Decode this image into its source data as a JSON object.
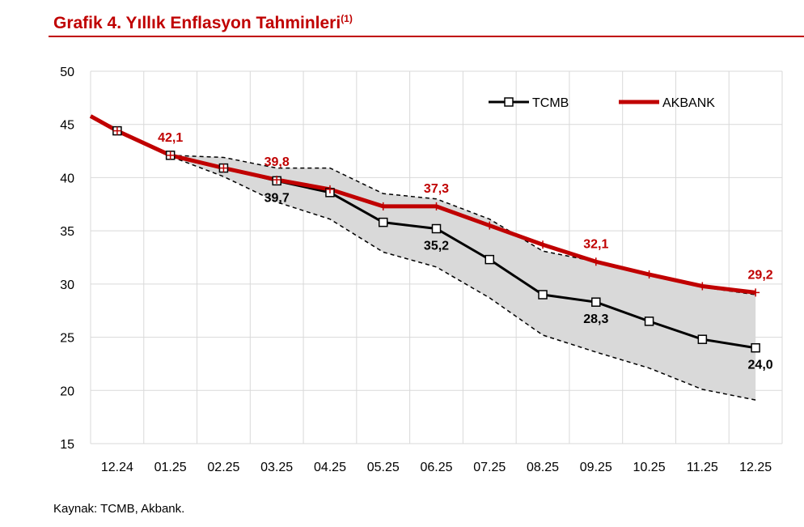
{
  "title": "Grafik 4. Yıllık Enflasyon Tahminleri",
  "title_note": "(1)",
  "source": "Kaynak: TCMB, Akbank.",
  "chart_data": {
    "type": "line",
    "categories": [
      "12.24",
      "01.25",
      "02.25",
      "03.25",
      "04.25",
      "05.25",
      "06.25",
      "07.25",
      "08.25",
      "09.25",
      "10.25",
      "11.25",
      "12.25"
    ],
    "ylim": [
      15,
      50
    ],
    "yticks": [
      15,
      20,
      25,
      30,
      35,
      40,
      45,
      50
    ],
    "grid": true,
    "legend_position": "top-right",
    "series": [
      {
        "name": "TCMB",
        "color": "#000000",
        "marker": "square",
        "values": [
          44.4,
          42.1,
          40.9,
          39.7,
          38.6,
          35.8,
          35.2,
          32.3,
          29.0,
          28.3,
          26.5,
          24.8,
          24.0
        ]
      },
      {
        "name": "AKBANK",
        "color": "#c00000",
        "marker": "plus",
        "values": [
          44.4,
          42.1,
          40.9,
          39.8,
          38.9,
          37.3,
          37.3,
          35.5,
          33.7,
          32.1,
          30.9,
          29.8,
          29.2
        ]
      }
    ],
    "band": {
      "color": "#d9d9d9",
      "upper": [
        44.4,
        42.1,
        41.9,
        40.9,
        40.9,
        38.5,
        38.0,
        36.1,
        33.1,
        32.1,
        30.9,
        29.7,
        29.0
      ],
      "lower": [
        44.4,
        42.0,
        40.1,
        37.7,
        36.1,
        33.0,
        31.6,
        28.7,
        25.2,
        23.6,
        22.1,
        20.1,
        19.1
      ]
    },
    "data_labels": [
      {
        "series": "AKBANK",
        "category": "01.25",
        "text": "42,1"
      },
      {
        "series": "AKBANK",
        "category": "03.25",
        "text": "39,8"
      },
      {
        "series": "TCMB",
        "category": "03.25",
        "text": "39,7"
      },
      {
        "series": "AKBANK",
        "category": "06.25",
        "text": "37,3"
      },
      {
        "series": "TCMB",
        "category": "06.25",
        "text": "35,2"
      },
      {
        "series": "AKBANK",
        "category": "09.25",
        "text": "32,1"
      },
      {
        "series": "TCMB",
        "category": "09.25",
        "text": "28,3"
      },
      {
        "series": "AKBANK",
        "category": "12.25",
        "text": "29,2"
      },
      {
        "series": "TCMB",
        "category": "12.25",
        "text": "24,0"
      }
    ]
  }
}
